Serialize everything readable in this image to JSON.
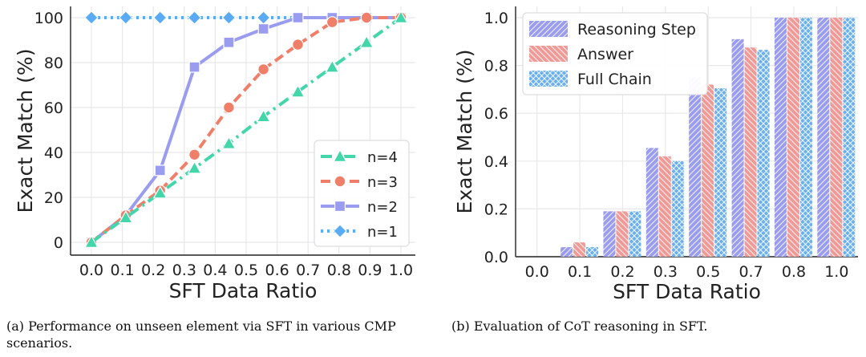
{
  "colors": {
    "n4": "#44d6ab",
    "n3": "#ef7f68",
    "n2": "#9a9cf0",
    "n1": "#5aabf5",
    "reasoning": "#9a9cf0",
    "answer": "#ef9a97",
    "full": "#6aafef",
    "grid": "#e8e8ea",
    "axis": "#222222"
  },
  "captions": {
    "a": "(a) Performance on unseen element via SFT in various CMP scenarios.",
    "b": "(b) Evaluation of CoT reasoning in SFT."
  },
  "chart_data": [
    {
      "type": "line",
      "xlabel": "SFT Data Ratio",
      "ylabel": "Exact Match (%)",
      "xlim": [
        0.0,
        1.0
      ],
      "ylim": [
        -5,
        102
      ],
      "xticks": [
        0.0,
        0.1,
        0.2,
        0.3,
        0.4,
        0.5,
        0.6,
        0.7,
        0.8,
        0.9,
        1.0
      ],
      "xtick_labels": [
        "0.0",
        "0.1",
        "0.2",
        "0.3",
        "0.4",
        "0.5",
        "0.6",
        "0.7",
        "0.8",
        "0.9",
        "1.0"
      ],
      "yticks": [
        0,
        20,
        40,
        60,
        80,
        100
      ],
      "ytick_labels": [
        "0",
        "20",
        "40",
        "60",
        "80",
        "100"
      ],
      "grid": true,
      "legend": "lower-right",
      "x": [
        0.0,
        0.111,
        0.222,
        0.333,
        0.444,
        0.556,
        0.667,
        0.778,
        0.889,
        1.0
      ],
      "series": [
        {
          "name": "n=4",
          "marker": "triangle",
          "dash": "dashdot",
          "color_key": "n4",
          "values": [
            0,
            11,
            22,
            33,
            44,
            56,
            67,
            78,
            89,
            100
          ]
        },
        {
          "name": "n=3",
          "marker": "circle",
          "dash": "dash",
          "color_key": "n3",
          "values": [
            0,
            12,
            23,
            39,
            60,
            77,
            88,
            98,
            100,
            100
          ]
        },
        {
          "name": "n=2",
          "marker": "square",
          "dash": "solid",
          "color_key": "n2",
          "values": [
            0,
            12,
            32,
            78,
            89,
            95,
            100,
            100,
            100,
            100
          ]
        },
        {
          "name": "n=1",
          "marker": "diamond",
          "dash": "dot",
          "color_key": "n1",
          "values": [
            100,
            100,
            100,
            100,
            100,
            100,
            100,
            100,
            100,
            100
          ]
        }
      ]
    },
    {
      "type": "bar",
      "xlabel": "SFT Data Ratio",
      "ylabel": "Exact Match (%)",
      "categories": [
        "0.0",
        "0.1",
        "0.2",
        "0.3",
        "0.5",
        "0.7",
        "0.8",
        "1.0"
      ],
      "ylim": [
        0.0,
        1.0
      ],
      "yticks": [
        0.0,
        0.2,
        0.4,
        0.6,
        0.8,
        1.0
      ],
      "ytick_labels": [
        "0.0",
        "0.2",
        "0.4",
        "0.6",
        "0.8",
        "1.0"
      ],
      "grid": true,
      "legend": "top-left",
      "series": [
        {
          "name": "Reasoning Step",
          "hatch": "diagonal",
          "color_key": "reasoning",
          "values": [
            0.0,
            0.04,
            0.19,
            0.455,
            0.75,
            0.91,
            1.0,
            1.0
          ]
        },
        {
          "name": "Answer",
          "hatch": "backdiagonal",
          "color_key": "answer",
          "values": [
            0.0,
            0.06,
            0.19,
            0.42,
            0.72,
            0.875,
            1.0,
            1.0
          ]
        },
        {
          "name": "Full Chain",
          "hatch": "cross",
          "color_key": "full",
          "values": [
            0.0,
            0.04,
            0.19,
            0.4,
            0.705,
            0.865,
            1.0,
            1.0
          ]
        }
      ]
    }
  ]
}
